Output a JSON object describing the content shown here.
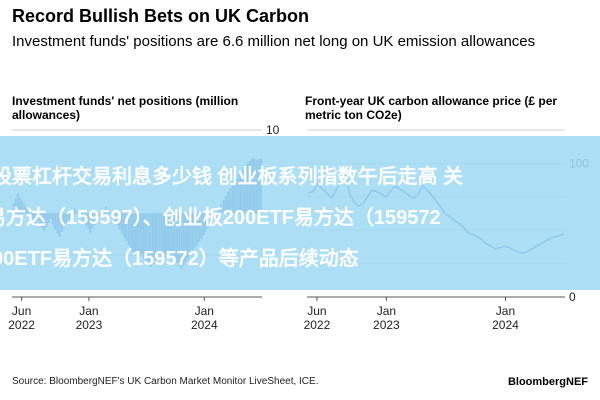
{
  "title": "Record Bullish Bets on UK Carbon",
  "subtitle": "Investment funds' positions are 6.6 million net long on UK emission allowances",
  "banner": {
    "line1": "股票杠杆交易利息多少钱 创业板系列指数午后走高 关",
    "line2": "易方达（159597）、创业板200ETF易方达（159572",
    "line3": "00ETF易方达（159572）等产品后续动态"
  },
  "source": "Source: BloombergNEF's UK Carbon Market Monitor LiveSheet, ICE.",
  "brand": "BloombergNEF",
  "colors": {
    "bar": "#2f5aa8",
    "line": "#2f5aa8",
    "grid": "#cfcfcf",
    "banner": "#a0daf4"
  },
  "chart_data": [
    {
      "type": "bar",
      "title": "Investment funds' net positions (million allowances)",
      "x_tick_labels": [
        {
          "date": "2022-06",
          "label": "Jun\n2022"
        },
        {
          "date": "2023-01",
          "label": "Jan\n2023"
        },
        {
          "date": "2024-01",
          "label": "Jan\n2024"
        }
      ],
      "ylim": [
        -10,
        10
      ],
      "y_ticks": [
        10,
        5,
        0,
        -5,
        -10
      ],
      "y_tick_labels": [
        "10",
        "5",
        "",
        "",
        ""
      ],
      "grid": true,
      "x": [
        "2022-05-06",
        "2022-05-13",
        "2022-05-20",
        "2022-05-27",
        "2022-06-03",
        "2022-06-10",
        "2022-06-17",
        "2022-06-24",
        "2022-07-01",
        "2022-07-08",
        "2022-07-15",
        "2022-07-22",
        "2022-07-29",
        "2022-08-05",
        "2022-08-12",
        "2022-08-19",
        "2022-08-26",
        "2022-09-02",
        "2022-09-09",
        "2022-09-16",
        "2022-09-23",
        "2022-09-30",
        "2022-10-07",
        "2022-10-14",
        "2022-10-21",
        "2022-10-28",
        "2022-11-04",
        "2022-11-11",
        "2022-11-18",
        "2022-11-25",
        "2022-12-02",
        "2022-12-09",
        "2022-12-16",
        "2022-12-23",
        "2022-12-30",
        "2023-01-06",
        "2023-01-13",
        "2023-01-20",
        "2023-01-27",
        "2023-02-03",
        "2023-02-10",
        "2023-02-17",
        "2023-02-24",
        "2023-03-03",
        "2023-03-10",
        "2023-03-17",
        "2023-03-24",
        "2023-03-31",
        "2023-04-07",
        "2023-04-14",
        "2023-04-21",
        "2023-04-28",
        "2023-05-05",
        "2023-05-12",
        "2023-05-19",
        "2023-05-26",
        "2023-06-02",
        "2023-06-09",
        "2023-06-16",
        "2023-06-23",
        "2023-06-30",
        "2023-07-07",
        "2023-07-14",
        "2023-07-21",
        "2023-07-28",
        "2023-08-04",
        "2023-08-11",
        "2023-08-18",
        "2023-08-25",
        "2023-09-01",
        "2023-09-08",
        "2023-09-15",
        "2023-09-22",
        "2023-09-29",
        "2023-10-06",
        "2023-10-13",
        "2023-10-20",
        "2023-10-27",
        "2023-11-03",
        "2023-11-10",
        "2023-11-17",
        "2023-11-24",
        "2023-12-01",
        "2023-12-08",
        "2023-12-15",
        "2023-12-22",
        "2023-12-29",
        "2024-01-05",
        "2024-01-12",
        "2024-01-19",
        "2024-01-26",
        "2024-02-02",
        "2024-02-09",
        "2024-02-16",
        "2024-02-23",
        "2024-03-01",
        "2024-03-08",
        "2024-03-15",
        "2024-03-22",
        "2024-03-29",
        "2024-04-05",
        "2024-04-12",
        "2024-04-19",
        "2024-04-26",
        "2024-05-03",
        "2024-05-10",
        "2024-05-17",
        "2024-05-24",
        "2024-05-31",
        "2024-06-07",
        "2024-06-14",
        "2024-06-21",
        "2024-06-28"
      ],
      "values": [
        1.2,
        1.8,
        2.4,
        1.9,
        1.5,
        1.1,
        0.6,
        0.2,
        -0.3,
        -0.8,
        -1.2,
        -0.9,
        -1.4,
        -1.8,
        -2.1,
        -1.6,
        -1.1,
        -0.7,
        -1.3,
        -1.9,
        -2.4,
        -2.8,
        -2.2,
        -1.7,
        -1.2,
        -0.8,
        -0.4,
        0.2,
        0.6,
        0.3,
        -0.2,
        -0.6,
        -1.1,
        -1.5,
        -1.9,
        -2.3,
        -1.8,
        -1.4,
        -0.9,
        -0.5,
        -0.1,
        0.4,
        0.8,
        0.5,
        0.1,
        -0.4,
        -0.9,
        -1.4,
        -1.9,
        -2.4,
        -2.9,
        -3.3,
        -3.8,
        -4.2,
        -4.6,
        -5.0,
        -5.4,
        -5.1,
        -4.8,
        -5.3,
        -5.8,
        -6.1,
        -6.4,
        -6.0,
        -5.6,
        -5.2,
        -4.9,
        -5.3,
        -5.7,
        -5.4,
        -5.0,
        -4.7,
        -5.1,
        -5.5,
        -5.9,
        -6.3,
        -6.6,
        -6.2,
        -5.8,
        -5.4,
        -5.0,
        -4.6,
        -4.2,
        -3.8,
        -3.4,
        -3.0,
        -2.6,
        -2.2,
        -1.8,
        -1.3,
        -0.8,
        -0.4,
        0.1,
        0.6,
        1.1,
        1.6,
        2.1,
        2.6,
        3.0,
        3.5,
        3.9,
        4.3,
        4.7,
        5.1,
        5.4,
        5.8,
        6.1,
        6.3,
        6.5,
        6.6,
        6.4,
        6.5,
        6.6
      ]
    },
    {
      "type": "line",
      "title": "Front-year UK carbon allowance price (£ per metric ton CO2e)",
      "x_tick_labels": [
        {
          "date": "2022-06",
          "label": "Jun\n2022"
        },
        {
          "date": "2023-01",
          "label": "Jan\n2023"
        },
        {
          "date": "2024-01",
          "label": "Jan\n2024"
        }
      ],
      "ylim": [
        0,
        125
      ],
      "y_ticks": [
        0,
        25,
        50,
        75,
        100,
        125
      ],
      "y_tick_labels": [
        "0",
        "",
        "",
        "",
        "100",
        ""
      ],
      "grid": true,
      "x": [
        "2022-05-06",
        "2022-05-20",
        "2022-06-03",
        "2022-06-17",
        "2022-07-01",
        "2022-07-15",
        "2022-07-29",
        "2022-08-12",
        "2022-08-26",
        "2022-09-09",
        "2022-09-23",
        "2022-10-07",
        "2022-10-21",
        "2022-11-04",
        "2022-11-18",
        "2022-12-02",
        "2022-12-16",
        "2022-12-30",
        "2023-01-13",
        "2023-01-27",
        "2023-02-10",
        "2023-02-24",
        "2023-03-10",
        "2023-03-24",
        "2023-04-07",
        "2023-04-21",
        "2023-05-05",
        "2023-05-19",
        "2023-06-02",
        "2023-06-16",
        "2023-06-30",
        "2023-07-14",
        "2023-07-28",
        "2023-08-11",
        "2023-08-25",
        "2023-09-08",
        "2023-09-22",
        "2023-10-06",
        "2023-10-20",
        "2023-11-03",
        "2023-11-17",
        "2023-12-01",
        "2023-12-15",
        "2023-12-29",
        "2024-01-12",
        "2024-01-26",
        "2024-02-09",
        "2024-02-23",
        "2024-03-08",
        "2024-03-22",
        "2024-04-05",
        "2024-04-19",
        "2024-05-03",
        "2024-05-17",
        "2024-05-31",
        "2024-06-14",
        "2024-06-28"
      ],
      "values": [
        78,
        79,
        85,
        81,
        78,
        74,
        80,
        86,
        95,
        78,
        71,
        68,
        70,
        75,
        80,
        79,
        77,
        75,
        79,
        83,
        81,
        79,
        76,
        74,
        77,
        83,
        80,
        76,
        72,
        67,
        62,
        60,
        57,
        55,
        52,
        48,
        47,
        45,
        43,
        40,
        38,
        36,
        37,
        38,
        37,
        35,
        34,
        33,
        34,
        36,
        38,
        40,
        42,
        44,
        45,
        46,
        47
      ]
    }
  ]
}
